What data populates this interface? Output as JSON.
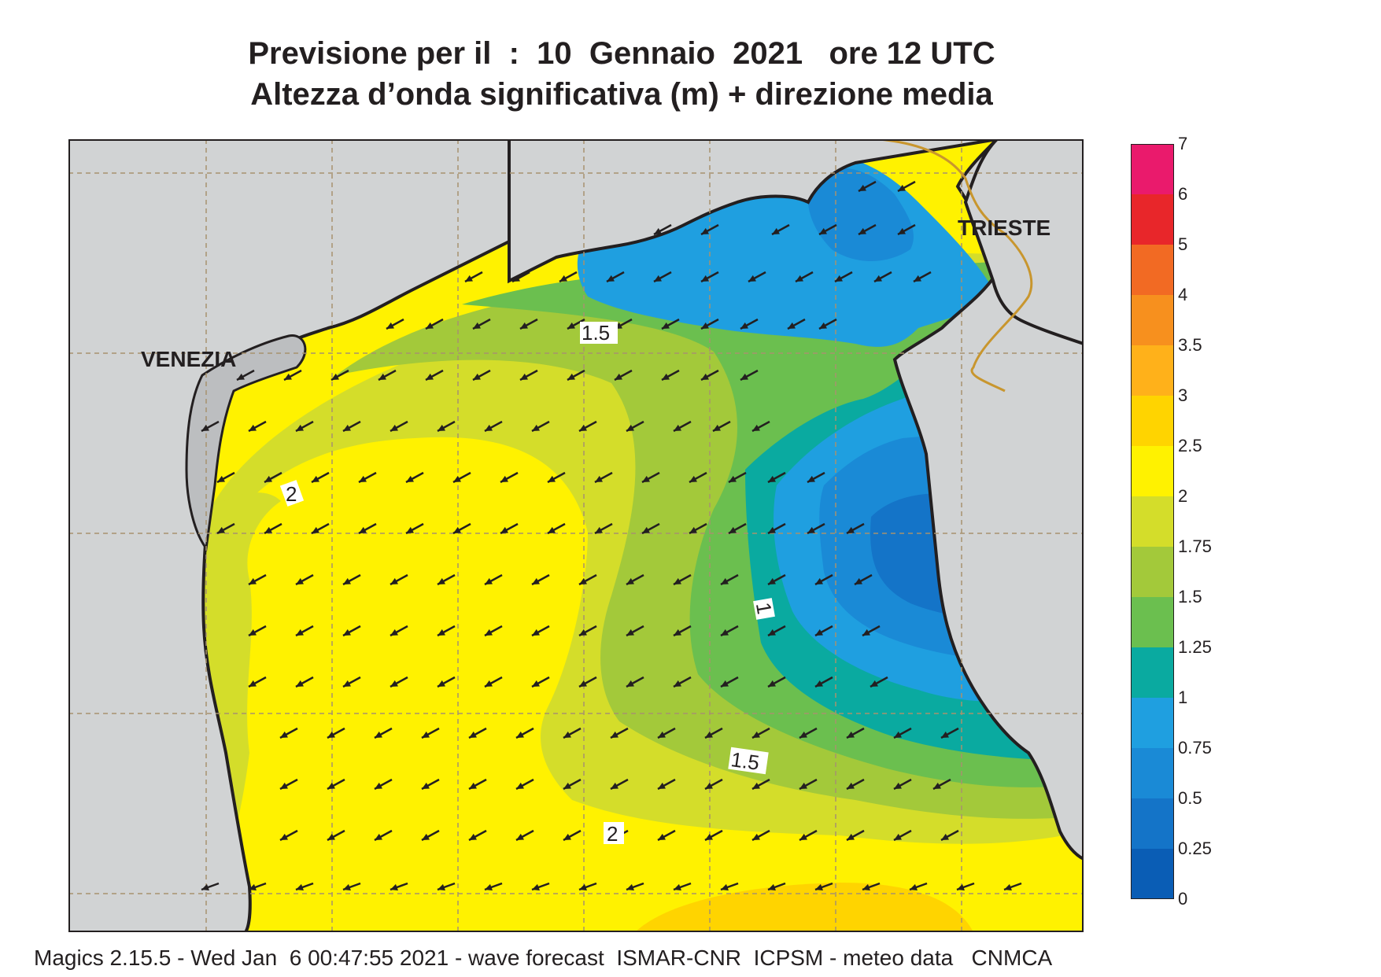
{
  "title": {
    "line1": "Previsione per il  :  10  Gennaio  2021   ore 12 UTC",
    "line2": "Altezza d’onda significativa (m) + direzione media"
  },
  "cities": [
    {
      "name": "VENEZIA"
    },
    {
      "name": "TRIESTE"
    }
  ],
  "contour_labels": [
    "1.5",
    "2",
    "1",
    "1.5",
    "2"
  ],
  "legend": {
    "levels": [
      "0",
      "0.25",
      "0.5",
      "0.75",
      "1",
      "1.25",
      "1.5",
      "1.75",
      "2",
      "2.5",
      "3",
      "3.5",
      "4",
      "5",
      "6",
      "7"
    ],
    "colors": [
      "#0a5db5",
      "#1474c8",
      "#1a8ad6",
      "#1f9fe0",
      "#0aaaa0",
      "#6bbf4f",
      "#a3c93a",
      "#d4dd2a",
      "#fff200",
      "#ffd400",
      "#ffb11a",
      "#f7901e",
      "#f26a23",
      "#e8262a",
      "#ea1a6c"
    ]
  },
  "colors": {
    "land": "#d1d3d4",
    "land_dark": "#bcbec0",
    "grid": "#a7926e",
    "border": "#c8962e",
    "arrow": "#231f20"
  },
  "footer": "Magics 2.15.5 - Wed Jan  6 00:47:55 2021 - wave forecast  ISMAR-CNR  ICPSM - meteo data   CNMCA"
}
